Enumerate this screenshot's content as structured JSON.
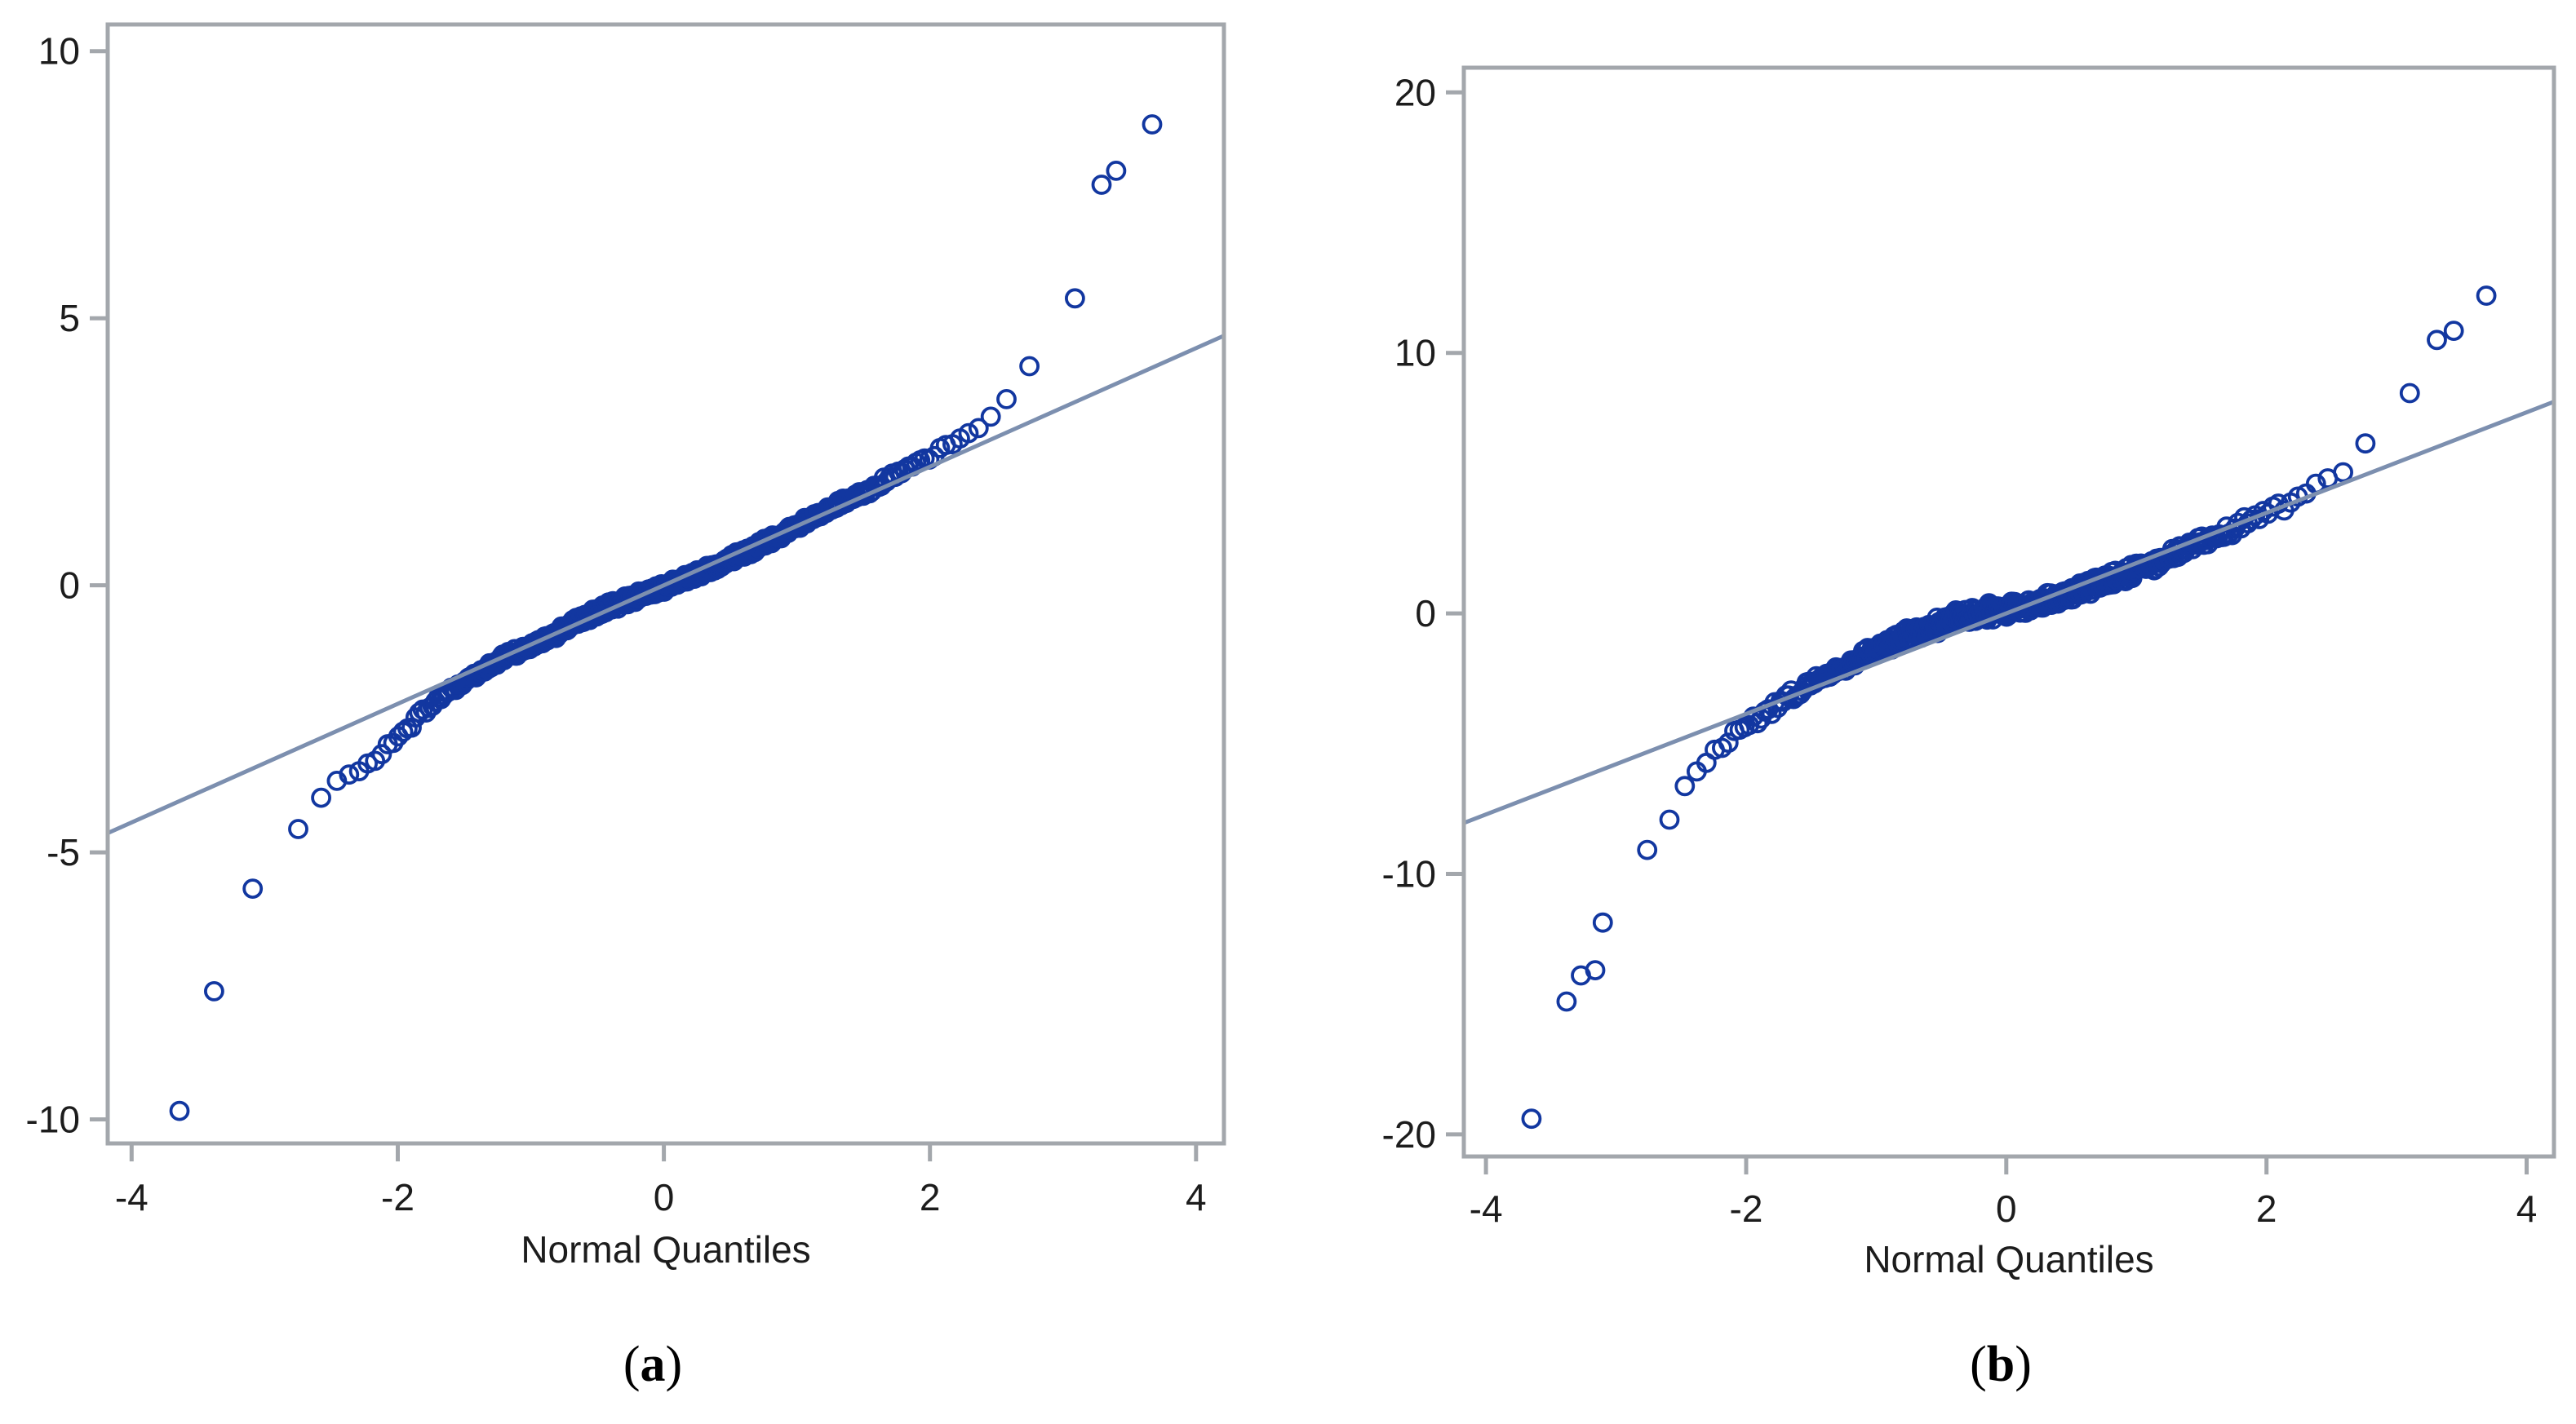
{
  "page": {
    "background": "#ffffff"
  },
  "chart_data": [
    {
      "id": "a",
      "type": "scatter",
      "variant": "qq-plot",
      "caption": "(a)",
      "xlabel": "Normal Quantiles",
      "ylabel": "",
      "x_ticks": [
        -4,
        -2,
        0,
        2,
        4
      ],
      "y_ticks": [
        10,
        5,
        0,
        -5,
        -10
      ],
      "xlim": [
        -4.18,
        4.21
      ],
      "ylim": [
        -10.45,
        10.5
      ],
      "grid": false,
      "legend": false,
      "ref_line": {
        "slope": 1.11,
        "intercept": 0
      },
      "band": {
        "n": 500,
        "jitter": 0.1,
        "anchors": [
          [
            -3.3,
            -6.55
          ],
          [
            -3.2,
            -6.0
          ],
          [
            -3.1,
            -5.7
          ],
          [
            -3.0,
            -5.45
          ],
          [
            -2.9,
            -5.1
          ],
          [
            -2.8,
            -4.8
          ],
          [
            -2.7,
            -4.4
          ],
          [
            -2.6,
            -4.05
          ],
          [
            -2.5,
            -3.8
          ],
          [
            -2.4,
            -3.6
          ],
          [
            -2.3,
            -3.45
          ],
          [
            -2.2,
            -3.3
          ],
          [
            -2.1,
            -3.1
          ],
          [
            -2.0,
            -2.85
          ],
          [
            -1.9,
            -2.6
          ],
          [
            -1.8,
            -2.35
          ],
          [
            -1.7,
            -2.15
          ],
          [
            -1.6,
            -1.95
          ],
          [
            -1.5,
            -1.8
          ],
          [
            -1.4,
            -1.65
          ],
          [
            -1.3,
            -1.5
          ],
          [
            -1.2,
            -1.35
          ],
          [
            -1.1,
            -1.25
          ],
          [
            -1.0,
            -1.15
          ],
          [
            -0.9,
            -1.0
          ],
          [
            -0.8,
            -0.88
          ],
          [
            -0.7,
            -0.75
          ],
          [
            -0.6,
            -0.62
          ],
          [
            -0.5,
            -0.5
          ],
          [
            -0.4,
            -0.4
          ],
          [
            -0.3,
            -0.3
          ],
          [
            -0.2,
            -0.2
          ],
          [
            -0.1,
            -0.12
          ],
          [
            0,
            -0.03
          ],
          [
            0.1,
            0.07
          ],
          [
            0.2,
            0.17
          ],
          [
            0.3,
            0.27
          ],
          [
            0.4,
            0.37
          ],
          [
            0.5,
            0.48
          ],
          [
            0.6,
            0.6
          ],
          [
            0.7,
            0.72
          ],
          [
            0.8,
            0.85
          ],
          [
            0.9,
            0.97
          ],
          [
            1.0,
            1.1
          ],
          [
            1.1,
            1.22
          ],
          [
            1.2,
            1.35
          ],
          [
            1.3,
            1.5
          ],
          [
            1.4,
            1.62
          ],
          [
            1.5,
            1.75
          ],
          [
            1.6,
            1.88
          ],
          [
            1.7,
            2.0
          ],
          [
            1.8,
            2.12
          ],
          [
            1.9,
            2.25
          ],
          [
            2.0,
            2.4
          ],
          [
            2.1,
            2.55
          ],
          [
            2.2,
            2.7
          ],
          [
            2.3,
            2.85
          ],
          [
            2.4,
            3.0
          ],
          [
            2.5,
            3.25
          ],
          [
            2.6,
            3.55
          ],
          [
            2.7,
            3.9
          ],
          [
            2.8,
            4.3
          ],
          [
            2.9,
            4.75
          ],
          [
            3.0,
            5.1
          ],
          [
            3.1,
            5.4
          ],
          [
            3.2,
            5.7
          ]
        ]
      },
      "outliers": [
        [
          -3.64,
          -9.84
        ],
        [
          -3.38,
          -7.6
        ],
        [
          3.29,
          7.5
        ],
        [
          3.4,
          7.76
        ],
        [
          3.67,
          8.63
        ]
      ],
      "colors": {
        "point": "#1237a0",
        "ref_line": "#7c8faf",
        "frame": "#a3a7ac",
        "text": "#1c1c1c",
        "caption": "#000000"
      }
    },
    {
      "id": "b",
      "type": "scatter",
      "variant": "qq-plot",
      "caption": "(b)",
      "xlabel": "Normal Quantiles",
      "ylabel": "",
      "x_ticks": [
        -4,
        -2,
        0,
        2,
        4
      ],
      "y_ticks": [
        20,
        10,
        0,
        -10,
        -20
      ],
      "xlim": [
        -4.17,
        4.21
      ],
      "ylim": [
        -20.85,
        20.95
      ],
      "grid": false,
      "legend": false,
      "ref_line": {
        "slope": 1.93,
        "intercept": 0
      },
      "band": {
        "n": 520,
        "jitter": 0.35,
        "anchors": [
          [
            -3.15,
            -12.1
          ],
          [
            -3.05,
            -11.65
          ],
          [
            -3.0,
            -11.3
          ],
          [
            -2.95,
            -10.6
          ],
          [
            -2.9,
            -10.3
          ],
          [
            -2.85,
            -9.85
          ],
          [
            -2.8,
            -9.4
          ],
          [
            -2.75,
            -9.1
          ],
          [
            -2.7,
            -8.9
          ],
          [
            -2.65,
            -8.45
          ],
          [
            -2.6,
            -8.0
          ],
          [
            -2.55,
            -7.4
          ],
          [
            -2.5,
            -6.8
          ],
          [
            -2.45,
            -6.5
          ],
          [
            -2.4,
            -6.2
          ],
          [
            -2.3,
            -5.6
          ],
          [
            -2.2,
            -5.15
          ],
          [
            -2.1,
            -4.7
          ],
          [
            -2.0,
            -4.3
          ],
          [
            -1.9,
            -3.95
          ],
          [
            -1.8,
            -3.6
          ],
          [
            -1.7,
            -3.3
          ],
          [
            -1.6,
            -3.0
          ],
          [
            -1.5,
            -2.7
          ],
          [
            -1.4,
            -2.45
          ],
          [
            -1.3,
            -2.15
          ],
          [
            -1.2,
            -1.9
          ],
          [
            -1.1,
            -1.65
          ],
          [
            -1.0,
            -1.4
          ],
          [
            -0.9,
            -1.15
          ],
          [
            -0.8,
            -0.95
          ],
          [
            -0.7,
            -0.75
          ],
          [
            -0.6,
            -0.55
          ],
          [
            -0.5,
            -0.38
          ],
          [
            -0.4,
            -0.2
          ],
          [
            -0.3,
            -0.1
          ],
          [
            -0.2,
            0.0
          ],
          [
            -0.1,
            0.08
          ],
          [
            0,
            0.15
          ],
          [
            0.1,
            0.25
          ],
          [
            0.2,
            0.35
          ],
          [
            0.3,
            0.47
          ],
          [
            0.4,
            0.6
          ],
          [
            0.5,
            0.75
          ],
          [
            0.6,
            0.95
          ],
          [
            0.7,
            1.1
          ],
          [
            0.8,
            1.3
          ],
          [
            0.9,
            1.45
          ],
          [
            1.0,
            1.65
          ],
          [
            1.1,
            1.85
          ],
          [
            1.2,
            2.05
          ],
          [
            1.3,
            2.3
          ],
          [
            1.4,
            2.5
          ],
          [
            1.5,
            2.75
          ],
          [
            1.6,
            2.95
          ],
          [
            1.7,
            3.2
          ],
          [
            1.8,
            3.45
          ],
          [
            1.9,
            3.7
          ],
          [
            2.0,
            3.85
          ],
          [
            2.1,
            4.1
          ],
          [
            2.2,
            4.35
          ],
          [
            2.3,
            4.6
          ],
          [
            2.4,
            4.85
          ],
          [
            2.5,
            5.15
          ],
          [
            2.6,
            5.55
          ],
          [
            2.7,
            6.0
          ],
          [
            2.77,
            6.5
          ],
          [
            2.85,
            7.0
          ],
          [
            2.93,
            7.6
          ],
          [
            3.0,
            8.05
          ],
          [
            3.07,
            8.4
          ],
          [
            3.12,
            8.7
          ],
          [
            3.17,
            8.9
          ]
        ]
      },
      "outliers": [
        [
          -3.65,
          -19.4
        ],
        [
          -3.38,
          -14.9
        ],
        [
          -3.27,
          -13.9
        ],
        [
          -3.16,
          -13.7
        ],
        [
          3.31,
          10.5
        ],
        [
          3.44,
          10.85
        ],
        [
          3.69,
          12.2
        ]
      ],
      "colors": {
        "point": "#1237a0",
        "ref_line": "#7c8faf",
        "frame": "#a3a7ac",
        "text": "#1c1c1c",
        "caption": "#000000"
      }
    }
  ]
}
